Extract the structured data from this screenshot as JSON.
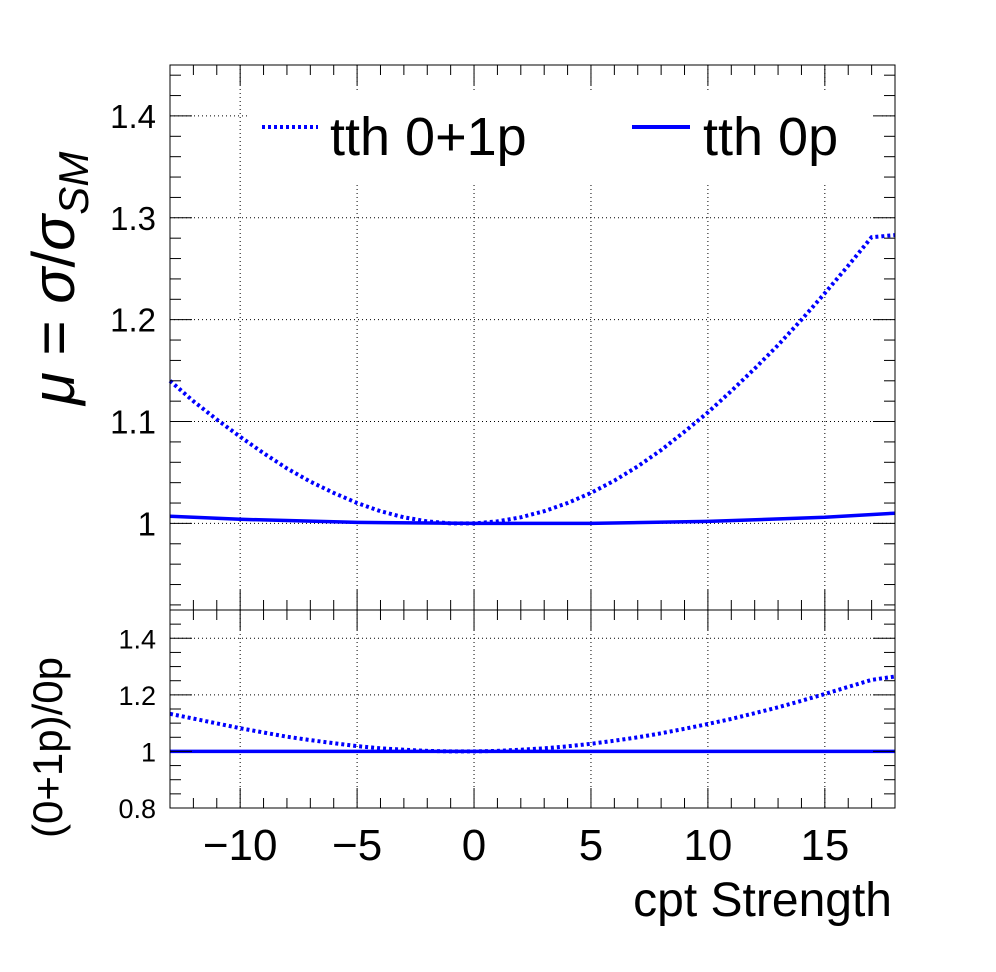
{
  "chart_data": [
    {
      "type": "line",
      "panel": "main",
      "ylabel_parts": {
        "mu": "μ",
        "eq": " = ",
        "sigma": "σ",
        "slash": "/",
        "sub": "SM"
      },
      "xlim": [
        -13,
        18
      ],
      "ylim": [
        0.915,
        1.45
      ],
      "yticks": [
        1,
        1.1,
        1.2,
        1.3,
        1.4
      ],
      "ytick_labels": [
        "1",
        "1.1",
        "1.2",
        "1.3",
        "1.4"
      ],
      "grid": true,
      "legend_position": "top",
      "series": [
        {
          "name": "tth 0+1p",
          "style": "dotted",
          "color": "#0000ff",
          "x": [
            -13,
            -12,
            -11,
            -10,
            -9,
            -8,
            -7,
            -6,
            -5,
            -4,
            -3,
            -2,
            -1,
            0,
            1,
            2,
            3,
            4,
            5,
            6,
            7,
            8,
            9,
            10,
            11,
            12,
            13,
            14,
            15,
            16,
            17,
            18
          ],
          "y": [
            1.14,
            1.12,
            1.102,
            1.085,
            1.069,
            1.054,
            1.041,
            1.03,
            1.02,
            1.012,
            1.006,
            1.002,
            1.0,
            1.0,
            1.002,
            1.006,
            1.012,
            1.02,
            1.03,
            1.042,
            1.056,
            1.072,
            1.09,
            1.109,
            1.13,
            1.152,
            1.175,
            1.2,
            1.226,
            1.253,
            1.281,
            1.283
          ]
        },
        {
          "name": "tth 0p",
          "style": "solid",
          "color": "#0000ff",
          "x": [
            -13,
            -10,
            -5,
            0,
            5,
            10,
            15,
            18
          ],
          "y": [
            1.007,
            1.004,
            1.001,
            1.0,
            1.0,
            1.002,
            1.006,
            1.01
          ]
        }
      ]
    },
    {
      "type": "line",
      "panel": "ratio",
      "xlabel": "cpt Strength",
      "ylabel": "(0+1p)/0p",
      "xlim": [
        -13,
        18
      ],
      "ylim": [
        0.8,
        1.5
      ],
      "xticks": [
        -10,
        -5,
        0,
        5,
        10,
        15
      ],
      "xtick_labels": [
        "−10",
        "−5",
        "0",
        "5",
        "10",
        "15"
      ],
      "yticks": [
        0.8,
        1,
        1.2,
        1.4
      ],
      "ytick_labels": [
        "0.8",
        "1",
        "1.2",
        "1.4"
      ],
      "grid": true,
      "series": [
        {
          "name": "",
          "style": "dotted",
          "color": "#0000ff",
          "x": [
            -13,
            -12,
            -11,
            -10,
            -9,
            -8,
            -7,
            -6,
            -5,
            -4,
            -3,
            -2,
            -1,
            0,
            1,
            2,
            3,
            4,
            5,
            6,
            7,
            8,
            9,
            10,
            11,
            12,
            13,
            14,
            15,
            16,
            17,
            18
          ],
          "y": [
            1.133,
            1.116,
            1.099,
            1.082,
            1.067,
            1.052,
            1.04,
            1.029,
            1.019,
            1.011,
            1.006,
            1.002,
            1.0,
            1.0,
            1.002,
            1.006,
            1.011,
            1.018,
            1.027,
            1.038,
            1.05,
            1.064,
            1.08,
            1.097,
            1.115,
            1.135,
            1.156,
            1.179,
            1.203,
            1.228,
            1.253,
            1.265
          ]
        },
        {
          "name": "",
          "style": "solid",
          "color": "#0000ff",
          "x": [
            -13,
            18
          ],
          "y": [
            1.0,
            1.0
          ]
        }
      ]
    }
  ]
}
